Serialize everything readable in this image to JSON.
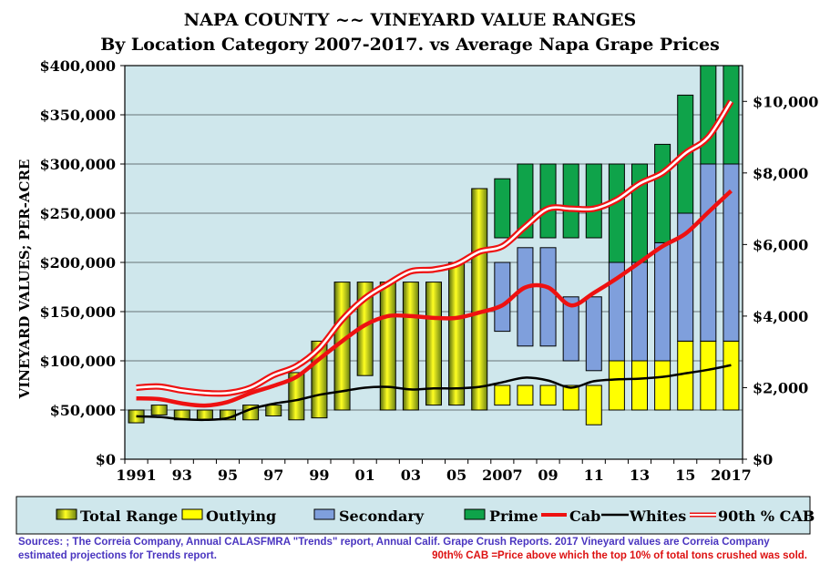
{
  "chart_data": {
    "type": "bar",
    "title": "NAPA COUNTY ~~ VINEYARD VALUE RANGES",
    "subtitle": "By Location Category 2007-2017. vs Average Napa Grape Prices",
    "ylabel": "VINEYARD VALUES; PER-ACRE",
    "ylim": [
      0,
      400000
    ],
    "y2lim": [
      0,
      11000
    ],
    "y_ticks": [
      "$0",
      "$50,000",
      "$100,000",
      "$150,000",
      "$200,000",
      "$250,000",
      "$300,000",
      "$350,000",
      "$400,000"
    ],
    "y2_ticks": [
      "$0",
      "$2,000",
      "$4,000",
      "$6,000",
      "$8,000",
      "$10,000"
    ],
    "x_tick_labels": [
      "1991",
      "93",
      "95",
      "97",
      "99",
      "01",
      "03",
      "05",
      "2007",
      "09",
      "11",
      "13",
      "15",
      "2017"
    ],
    "years": [
      1991,
      1992,
      1993,
      1994,
      1995,
      1996,
      1997,
      1998,
      1999,
      2000,
      2001,
      2002,
      2003,
      2004,
      2005,
      2006,
      2007,
      2008,
      2009,
      2010,
      2011,
      2012,
      2013,
      2014,
      2015,
      2016,
      2017
    ],
    "total_range": [
      [
        37000,
        50000
      ],
      [
        45000,
        55000
      ],
      [
        40000,
        50000
      ],
      [
        40000,
        50000
      ],
      [
        40000,
        50000
      ],
      [
        40000,
        55000
      ],
      [
        44000,
        55000
      ],
      [
        40000,
        88000
      ],
      [
        42000,
        120000
      ],
      [
        50000,
        180000
      ],
      [
        85000,
        180000
      ],
      [
        50000,
        180000
      ],
      [
        50000,
        180000
      ],
      [
        55000,
        180000
      ],
      [
        55000,
        200000
      ],
      [
        50000,
        275000
      ],
      null,
      null,
      null,
      null,
      null,
      null,
      null,
      null,
      null,
      null,
      null
    ],
    "outlying": [
      null,
      null,
      null,
      null,
      null,
      null,
      null,
      null,
      null,
      null,
      null,
      null,
      null,
      null,
      null,
      null,
      [
        55000,
        75000
      ],
      [
        55000,
        75000
      ],
      [
        55000,
        75000
      ],
      [
        50000,
        75000
      ],
      [
        35000,
        75000
      ],
      [
        50000,
        100000
      ],
      [
        50000,
        100000
      ],
      [
        50000,
        100000
      ],
      [
        50000,
        120000
      ],
      [
        50000,
        120000
      ],
      [
        50000,
        120000
      ]
    ],
    "secondary": [
      null,
      null,
      null,
      null,
      null,
      null,
      null,
      null,
      null,
      null,
      null,
      null,
      null,
      null,
      null,
      null,
      [
        130000,
        200000
      ],
      [
        115000,
        215000
      ],
      [
        115000,
        215000
      ],
      [
        100000,
        165000
      ],
      [
        90000,
        165000
      ],
      [
        100000,
        200000
      ],
      [
        100000,
        200000
      ],
      [
        100000,
        220000
      ],
      [
        120000,
        250000
      ],
      [
        120000,
        300000
      ],
      [
        120000,
        300000
      ]
    ],
    "prime": [
      null,
      null,
      null,
      null,
      null,
      null,
      null,
      null,
      null,
      null,
      null,
      null,
      null,
      null,
      null,
      null,
      [
        225000,
        285000
      ],
      [
        225000,
        300000
      ],
      [
        225000,
        300000
      ],
      [
        225000,
        300000
      ],
      [
        225000,
        300000
      ],
      [
        200000,
        300000
      ],
      [
        200000,
        300000
      ],
      [
        220000,
        320000
      ],
      [
        250000,
        370000
      ],
      [
        300000,
        400000
      ],
      [
        300000,
        400000
      ]
    ],
    "series": [
      {
        "name": "Cab",
        "axis": "right",
        "values": [
          1700,
          1680,
          1560,
          1500,
          1600,
          1850,
          2050,
          2300,
          2800,
          3300,
          3750,
          4000,
          4000,
          3950,
          3950,
          4100,
          4300,
          4800,
          4800,
          4300,
          4650,
          5050,
          5500,
          5950,
          6300,
          6900,
          7500
        ]
      },
      {
        "name": "Whites",
        "axis": "right",
        "values": [
          1200,
          1180,
          1120,
          1100,
          1150,
          1400,
          1550,
          1650,
          1800,
          1900,
          2000,
          2020,
          1950,
          1980,
          1980,
          2020,
          2150,
          2280,
          2200,
          2000,
          2180,
          2230,
          2250,
          2300,
          2400,
          2500,
          2630
        ]
      },
      {
        "name": "90th % CAB",
        "axis": "right",
        "values": [
          2000,
          2030,
          1920,
          1850,
          1850,
          2000,
          2350,
          2600,
          3100,
          3900,
          4500,
          4900,
          5250,
          5300,
          5450,
          5800,
          5950,
          6500,
          7000,
          7000,
          7000,
          7250,
          7700,
          8000,
          8550,
          9000,
          10000
        ]
      }
    ],
    "legend": [
      "Total Range",
      "Outlying",
      "Secondary",
      "Prime",
      "Cab",
      "Whites",
      "90th % CAB"
    ],
    "colors": {
      "plot_bg": "#cfe7ec",
      "outlying": "#ffff00",
      "secondary": "#7f9fdc",
      "prime": "#0fa34a",
      "cab": "#ee1111",
      "whites": "#000000",
      "p90_outer": "#ee1111",
      "total_dark": "#556b10",
      "total_light": "#ffff22"
    }
  },
  "source_note": "Sources: ; The Correia Company, Annual CALASFMRA \"Trends\" report, Annual Calif. Grape Crush Reports. 2017 Vineyard values are Correia Company estimated projections for Trends report.",
  "p90_note": "90th% CAB =Price above which the top 10% of total tons crushed was sold."
}
